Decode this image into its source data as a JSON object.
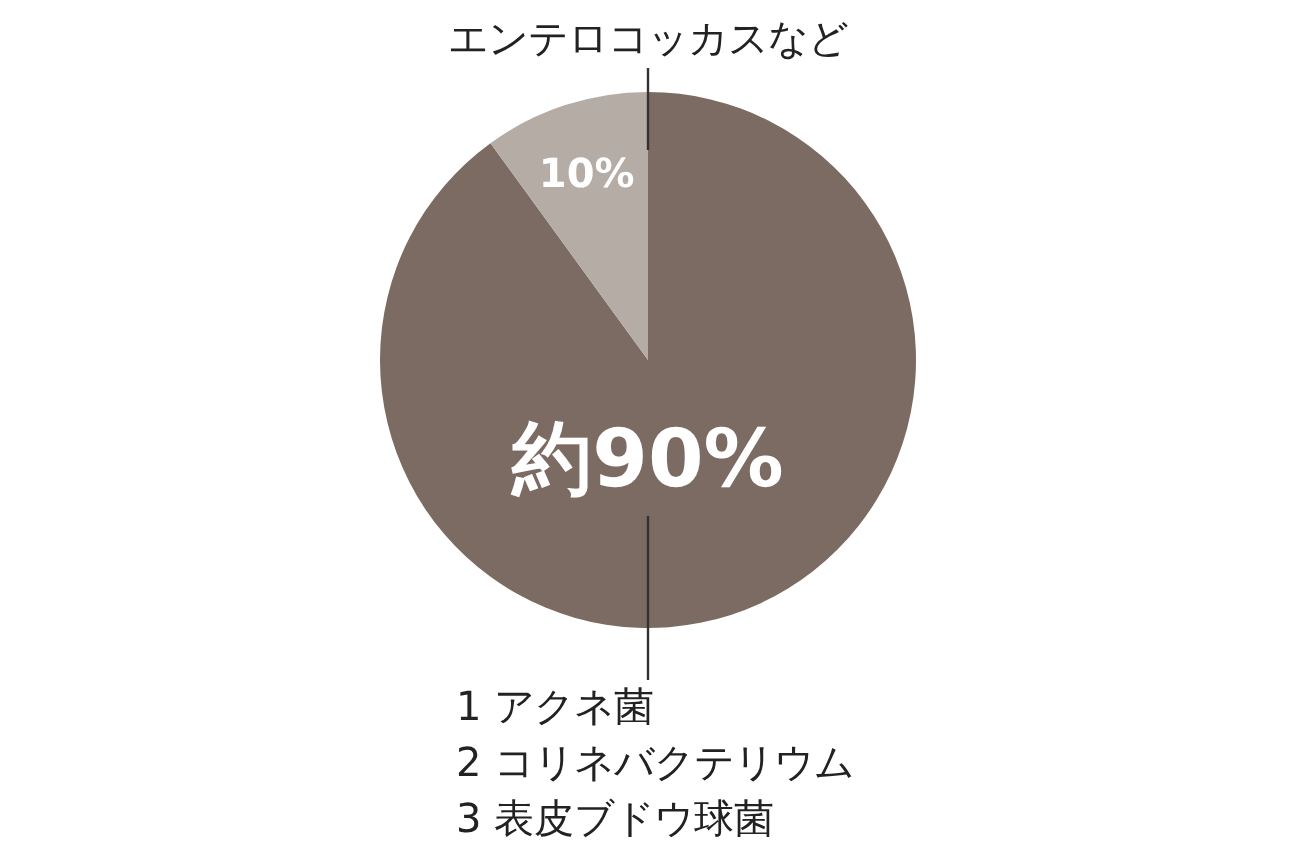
{
  "chart_data": {
    "type": "pie",
    "categories": [
      "1 アクネ菌\n2 コリネバクテリウム\n3 表皮ブドウ球菌",
      "エンテロコッカスなど"
    ],
    "values": [
      90,
      10
    ],
    "colors": [
      "#7b6b62",
      "#b5aca5"
    ],
    "value_labels": [
      "約90%",
      "10%"
    ]
  }
}
